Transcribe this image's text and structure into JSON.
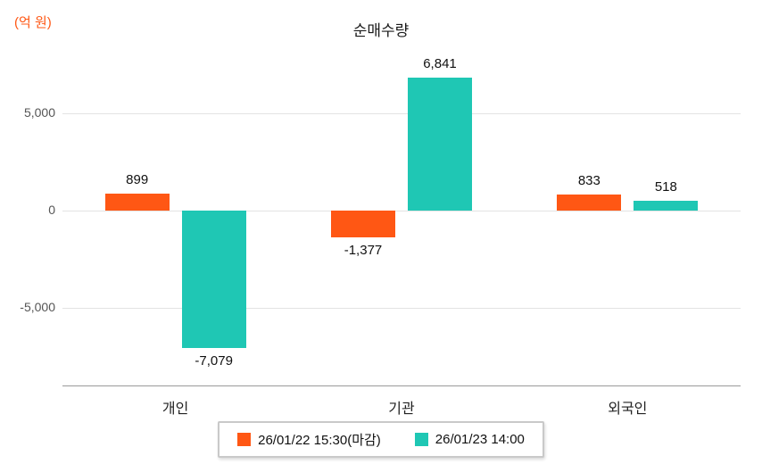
{
  "chart_data": {
    "type": "bar",
    "title": "순매수량",
    "unit_label": "(억 원)",
    "categories": [
      "개인",
      "기관",
      "외국인"
    ],
    "series": [
      {
        "name": "26/01/22 15:30(마감)",
        "color": "#ff5714",
        "values": [
          899,
          -1377,
          833
        ]
      },
      {
        "name": "26/01/23 14:00",
        "color": "#1fc7b4",
        "values": [
          -7079,
          6841,
          518
        ]
      }
    ],
    "yticks": [
      5000,
      0,
      -5000
    ],
    "ylim": [
      -9000,
      8100
    ],
    "grid": true,
    "legend_position": "bottom",
    "axis_line_color": "#9a9a9a",
    "gridline_color": "#e3e3e3"
  }
}
